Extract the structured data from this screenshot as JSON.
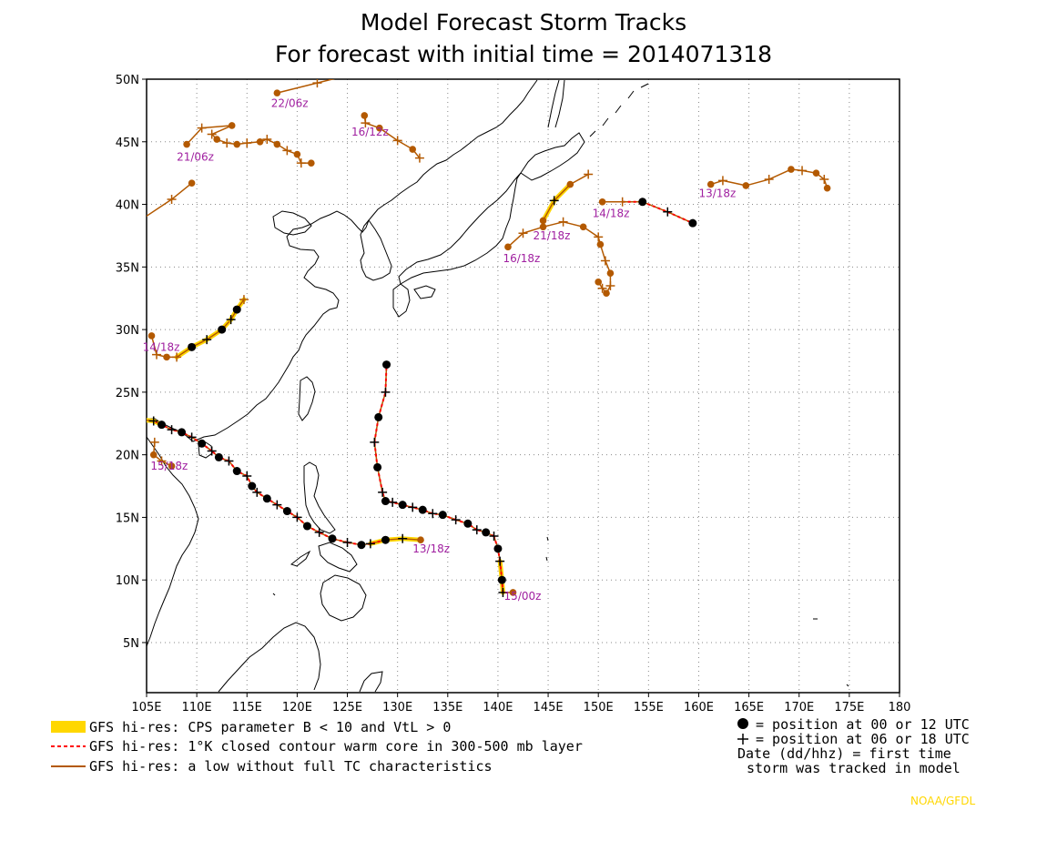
{
  "title": {
    "line1": "Model Forecast Storm Tracks",
    "line2": "For forecast with initial time = 2014071318"
  },
  "axes": {
    "lon_ticks": [
      "105E",
      "110E",
      "115E",
      "120E",
      "125E",
      "130E",
      "135E",
      "140E",
      "145E",
      "150E",
      "155E",
      "160E",
      "165E",
      "170E",
      "175E",
      "180"
    ],
    "lat_ticks": [
      "50N",
      "45N",
      "40N",
      "35N",
      "30N",
      "25N",
      "20N",
      "15N",
      "10N",
      "5N"
    ],
    "lon_range": [
      105,
      180
    ],
    "lat_range": [
      1,
      50
    ],
    "grid": true
  },
  "legend": {
    "cps_label": "GFS hi-res: CPS parameter B < 10 and VtL > 0",
    "warm_label": "GFS hi-res: 1°K closed contour warm core in 300-500 mb layer",
    "low_label": "GFS hi-res: a low without full TC characteristics",
    "pos00_label": "= position at 00 or 12 UTC",
    "pos06_label": "= position at 06 or 18 UTC",
    "date_line1": "Date (dd/hhz)  = first time",
    "date_line2": "storm was tracked in model"
  },
  "credit": "NOAA/GFDL",
  "colors": {
    "low": "#b35900",
    "warm": "#ff0000",
    "cps": "#ffd700",
    "label": "#a020a0",
    "grid": "#888888",
    "coast": "#000000"
  },
  "chart_data": {
    "type": "map",
    "tracks": [
      {
        "date_label": "15/00z",
        "label_anchor": [
          140.6,
          8.4
        ],
        "points": [
          [
            141.5,
            9.0,
            "low"
          ],
          [
            140.5,
            9.0,
            "warm"
          ],
          [
            140.4,
            10.0,
            "cps"
          ],
          [
            140.2,
            11.5,
            "warm"
          ],
          [
            140.0,
            12.5,
            "warm"
          ],
          [
            139.6,
            13.5,
            "warm"
          ],
          [
            138.8,
            13.8,
            "warm"
          ],
          [
            137.9,
            14.0,
            "warm"
          ],
          [
            137.0,
            14.5,
            "warm"
          ],
          [
            135.8,
            14.8,
            "warm"
          ],
          [
            134.5,
            15.2,
            "warm"
          ],
          [
            133.5,
            15.3,
            "warm"
          ],
          [
            132.5,
            15.6,
            "warm"
          ],
          [
            131.5,
            15.8,
            "warm"
          ],
          [
            130.5,
            16.0,
            "warm"
          ],
          [
            129.5,
            16.2,
            "warm"
          ],
          [
            128.8,
            16.3,
            "warm"
          ],
          [
            128.5,
            17.0,
            "warm"
          ],
          [
            128.0,
            19.0,
            "warm"
          ],
          [
            127.7,
            21.0,
            "warm"
          ],
          [
            128.1,
            23.0,
            "warm"
          ],
          [
            128.8,
            25.0,
            "warm"
          ],
          [
            128.9,
            27.2,
            "warm"
          ]
        ]
      },
      {
        "date_label": "13/18z",
        "label_anchor": [
          131.5,
          12.2
        ],
        "points": [
          [
            132.3,
            13.2,
            "low"
          ],
          [
            130.5,
            13.3,
            "cps"
          ],
          [
            128.8,
            13.2,
            "cps"
          ],
          [
            127.3,
            12.9,
            "warm"
          ],
          [
            126.4,
            12.8,
            "warm"
          ],
          [
            125.0,
            13.0,
            "warm"
          ],
          [
            123.5,
            13.3,
            "warm"
          ],
          [
            122.2,
            13.8,
            "warm"
          ],
          [
            121.0,
            14.3,
            "warm"
          ],
          [
            120.0,
            15.0,
            "warm"
          ],
          [
            119.0,
            15.5,
            "warm"
          ],
          [
            118.0,
            16.0,
            "warm"
          ],
          [
            117.0,
            16.5,
            "warm"
          ],
          [
            116.0,
            17.0,
            "warm"
          ],
          [
            115.5,
            17.5,
            "warm"
          ],
          [
            115.0,
            18.3,
            "warm"
          ],
          [
            114.0,
            18.7,
            "warm"
          ],
          [
            113.2,
            19.5,
            "warm"
          ],
          [
            112.2,
            19.8,
            "warm"
          ],
          [
            111.5,
            20.3,
            "warm"
          ],
          [
            110.5,
            20.9,
            "warm"
          ],
          [
            109.5,
            21.4,
            "warm"
          ],
          [
            108.5,
            21.8,
            "warm"
          ],
          [
            107.5,
            22.0,
            "warm"
          ],
          [
            106.5,
            22.4,
            "warm"
          ],
          [
            105.7,
            22.7,
            "cps"
          ],
          [
            104.5,
            22.8,
            "cps"
          ]
        ]
      },
      {
        "date_label": "15/18z",
        "label_anchor": [
          105.4,
          18.8
        ],
        "points": [
          [
            107.5,
            19.1,
            "low"
          ],
          [
            106.5,
            19.5,
            "low"
          ],
          [
            105.7,
            20.0,
            "low"
          ],
          [
            105.8,
            21.0,
            "low"
          ]
        ]
      },
      {
        "date_label": "14/18z",
        "label_anchor": [
          104.6,
          28.3
        ],
        "points": [
          [
            105.5,
            29.5,
            "low"
          ],
          [
            106.0,
            28.0,
            "low"
          ],
          [
            107.0,
            27.8,
            "low"
          ],
          [
            108.0,
            27.8,
            "low"
          ],
          [
            109.5,
            28.6,
            "cps"
          ],
          [
            111.0,
            29.2,
            "cps"
          ],
          [
            112.5,
            30.0,
            "cps"
          ],
          [
            113.4,
            30.8,
            "cps"
          ],
          [
            114.0,
            31.6,
            "cps"
          ],
          [
            114.7,
            32.4,
            "low"
          ]
        ]
      },
      {
        "date_label": "22/06z",
        "label_anchor": [
          117.4,
          47.8
        ],
        "points": [
          [
            118.0,
            48.9,
            "low"
          ],
          [
            122.0,
            49.7,
            "low"
          ],
          [
            126.5,
            50.6,
            "low"
          ]
        ]
      },
      {
        "date_label": "16/12z",
        "label_anchor": [
          125.4,
          45.5
        ],
        "points": [
          [
            126.7,
            47.1,
            "low"
          ],
          [
            126.8,
            46.5,
            "low"
          ],
          [
            128.2,
            46.1,
            "low"
          ],
          [
            130.0,
            45.1,
            "low"
          ],
          [
            131.5,
            44.4,
            "low"
          ],
          [
            132.2,
            43.7,
            "low"
          ]
        ]
      },
      {
        "date_label": "21/06z",
        "label_anchor": [
          108.0,
          43.5
        ],
        "points": [
          [
            109.0,
            44.8,
            "low"
          ],
          [
            110.5,
            46.1,
            "low"
          ],
          [
            113.5,
            46.3,
            "low"
          ],
          [
            111.5,
            45.6,
            "low"
          ],
          [
            112.0,
            45.2,
            "low"
          ],
          [
            113.0,
            44.9,
            "low"
          ],
          [
            114.0,
            44.8,
            "low"
          ],
          [
            115.0,
            44.9,
            "low"
          ],
          [
            116.3,
            45.0,
            "low"
          ],
          [
            117.0,
            45.2,
            "low"
          ],
          [
            118.0,
            44.8,
            "low"
          ],
          [
            119.0,
            44.3,
            "low"
          ],
          [
            120.0,
            44.0,
            "low"
          ],
          [
            120.4,
            43.3,
            "low"
          ],
          [
            121.4,
            43.3,
            "low"
          ]
        ]
      },
      {
        "date_label": "",
        "label_anchor": [
          105,
          40
        ],
        "points": [
          [
            104.5,
            38.8,
            "low"
          ],
          [
            107.5,
            40.4,
            "low"
          ],
          [
            109.5,
            41.7,
            "low"
          ]
        ]
      },
      {
        "date_label": "16/18z",
        "label_anchor": [
          140.5,
          35.4
        ],
        "points": [
          [
            141.0,
            36.6,
            "low"
          ],
          [
            142.5,
            37.7,
            "low"
          ],
          [
            144.5,
            38.2,
            "low"
          ],
          [
            146.5,
            38.6,
            "low"
          ],
          [
            148.5,
            38.2,
            "low"
          ],
          [
            150.0,
            37.4,
            "low"
          ],
          [
            150.2,
            36.8,
            "low"
          ],
          [
            150.7,
            35.5,
            "low"
          ],
          [
            151.2,
            34.5,
            "low"
          ],
          [
            151.2,
            33.5,
            "low"
          ],
          [
            150.8,
            32.9,
            "low"
          ],
          [
            150.4,
            33.3,
            "low"
          ],
          [
            150.0,
            33.8,
            "low"
          ]
        ]
      },
      {
        "date_label": "21/18z",
        "label_anchor": [
          143.5,
          37.2
        ],
        "points": [
          [
            144.5,
            38.7,
            "low"
          ],
          [
            145.6,
            40.3,
            "cps"
          ],
          [
            147.2,
            41.6,
            "low"
          ],
          [
            149.0,
            42.4,
            "low"
          ]
        ]
      },
      {
        "date_label": "14/18z",
        "label_anchor": [
          149.4,
          39.0
        ],
        "points": [
          [
            150.4,
            40.2,
            "low"
          ],
          [
            152.4,
            40.2,
            "low"
          ],
          [
            154.4,
            40.2,
            "warm"
          ],
          [
            156.9,
            39.4,
            "warm"
          ],
          [
            159.4,
            38.5,
            "warm"
          ]
        ]
      },
      {
        "date_label": "13/18z",
        "label_anchor": [
          160.0,
          40.6
        ],
        "points": [
          [
            161.2,
            41.6,
            "low"
          ],
          [
            162.4,
            41.9,
            "low"
          ],
          [
            164.7,
            41.5,
            "low"
          ],
          [
            167.0,
            42.0,
            "low"
          ],
          [
            169.2,
            42.8,
            "low"
          ],
          [
            170.3,
            42.7,
            "low"
          ],
          [
            171.7,
            42.5,
            "low"
          ],
          [
            172.5,
            42.0,
            "low"
          ],
          [
            172.8,
            41.3,
            "low"
          ]
        ]
      }
    ]
  }
}
